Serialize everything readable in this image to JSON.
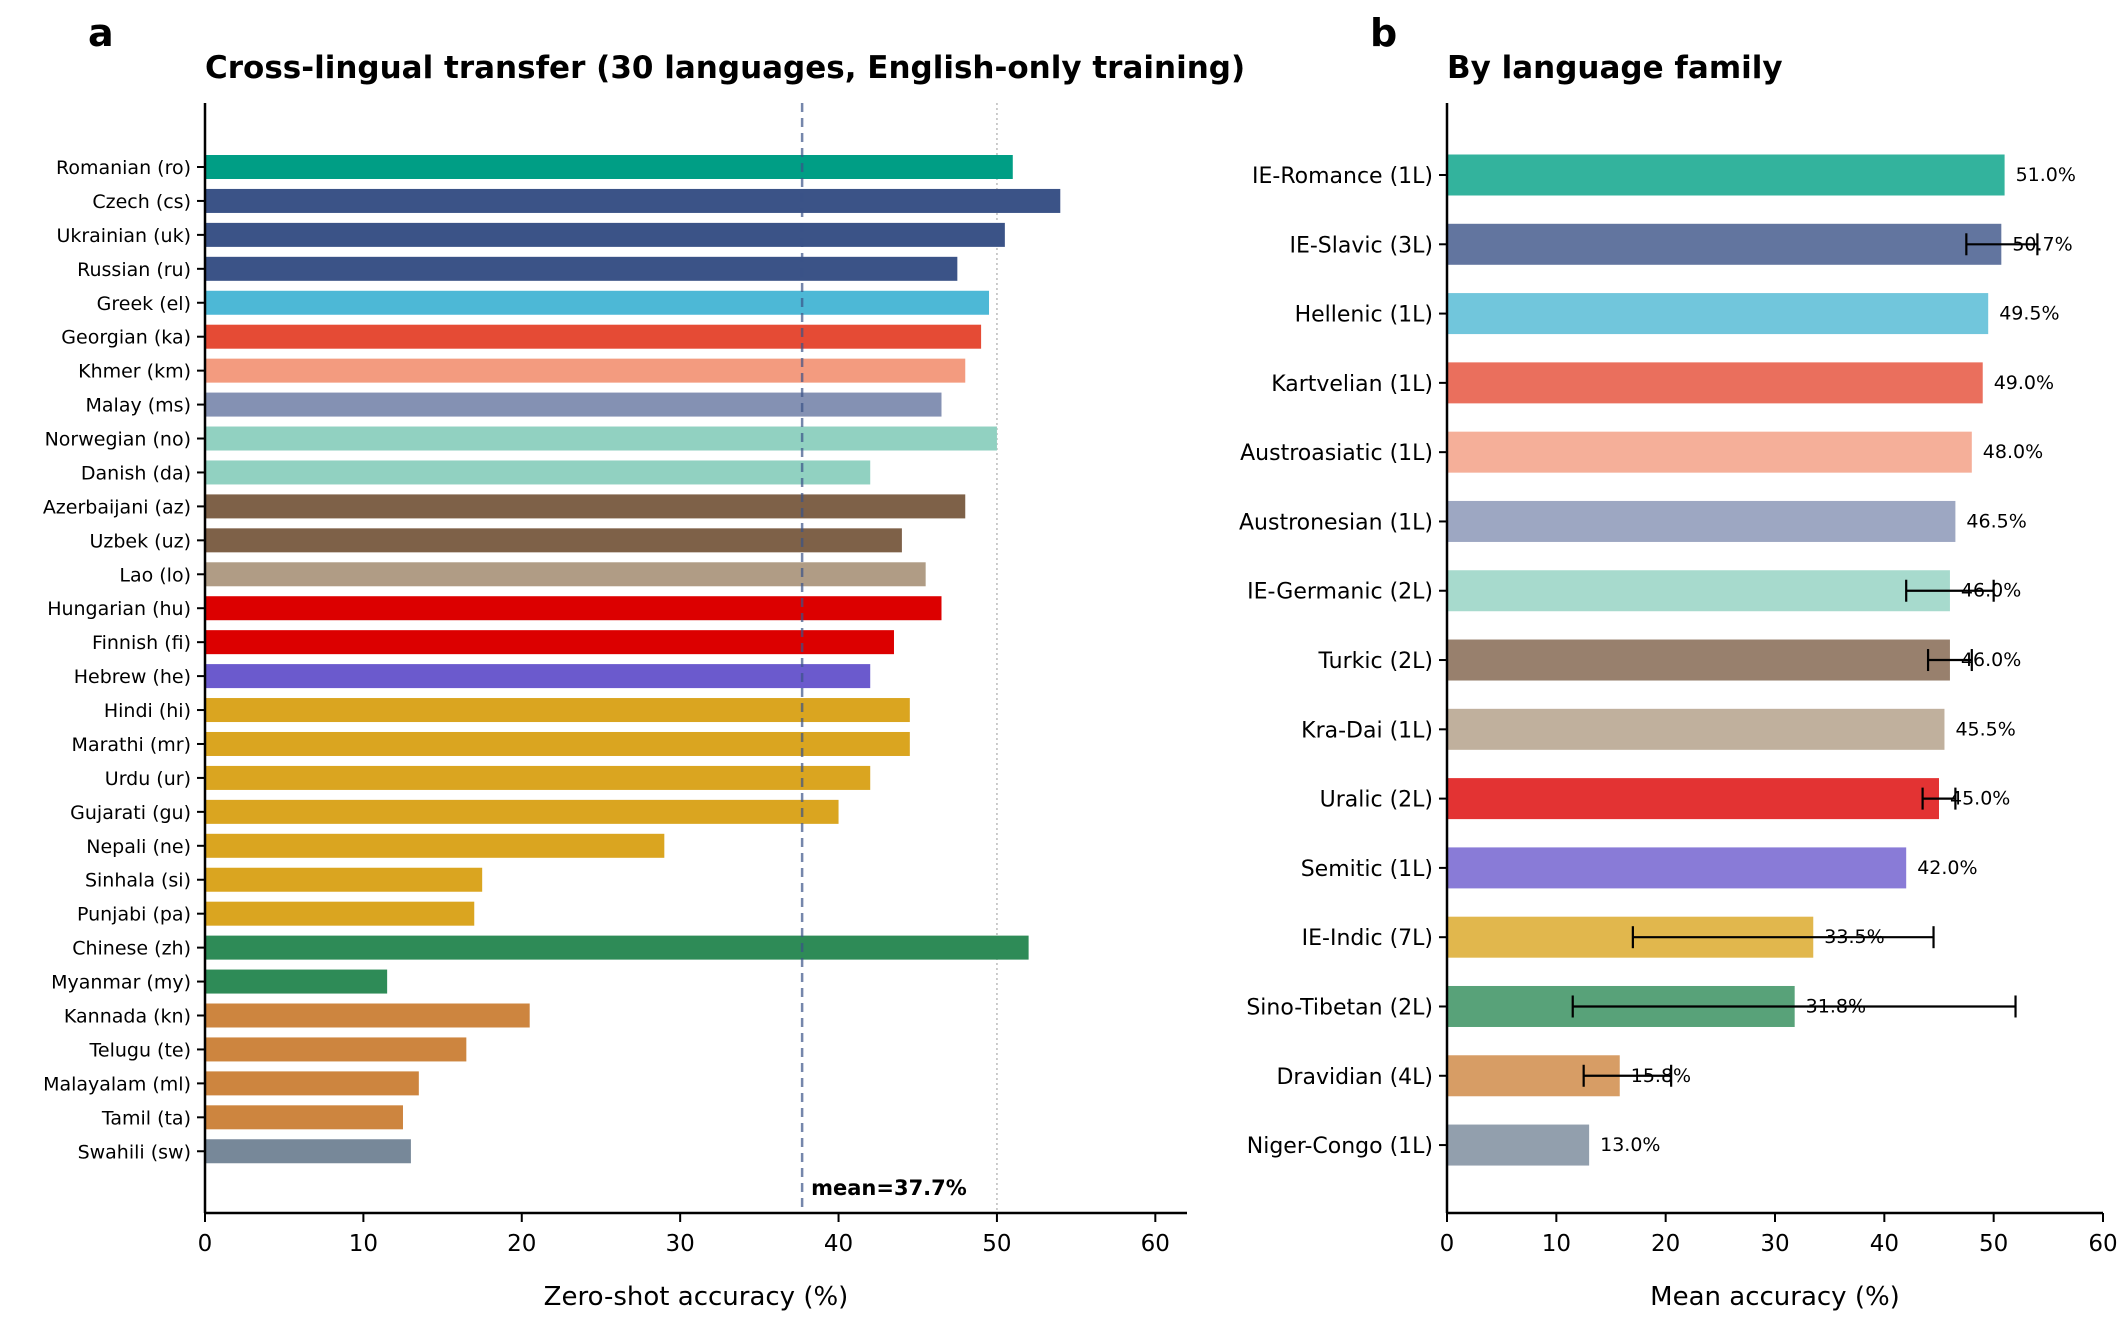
{
  "panel_a": {
    "letter": "a"
  },
  "panel_b": {
    "letter": "b"
  },
  "chart_data": [
    {
      "type": "bar",
      "orientation": "horizontal",
      "title": "Cross-lingual transfer (30 languages, English-only training)",
      "xlabel": "Zero-shot accuracy (%)",
      "ylabel": "",
      "xlim": [
        0,
        62
      ],
      "xticks": [
        0,
        10,
        20,
        30,
        40,
        50,
        60
      ],
      "reference_line_x": 50,
      "mean": {
        "value": 37.7,
        "label": "mean=37.7%",
        "color": "#3b5387"
      },
      "categories": [
        "Romanian (ro)",
        "Czech (cs)",
        "Ukrainian (uk)",
        "Russian (ru)",
        "Greek (el)",
        "Georgian (ka)",
        "Khmer (km)",
        "Malay (ms)",
        "Norwegian (no)",
        "Danish (da)",
        "Azerbaijani (az)",
        "Uzbek (uz)",
        "Lao (lo)",
        "Hungarian (hu)",
        "Finnish (fi)",
        "Hebrew (he)",
        "Hindi (hi)",
        "Marathi (mr)",
        "Urdu (ur)",
        "Gujarati (gu)",
        "Nepali (ne)",
        "Sinhala (si)",
        "Punjabi (pa)",
        "Chinese (zh)",
        "Myanmar (my)",
        "Kannada (kn)",
        "Telugu (te)",
        "Malayalam (ml)",
        "Tamil (ta)",
        "Swahili (sw)"
      ],
      "values": [
        51.0,
        54.0,
        50.5,
        47.5,
        49.5,
        49.0,
        48.0,
        46.5,
        50.0,
        42.0,
        48.0,
        44.0,
        45.5,
        46.5,
        43.5,
        42.0,
        44.5,
        44.5,
        42.0,
        40.0,
        29.0,
        17.5,
        17.0,
        52.0,
        11.5,
        20.5,
        16.5,
        13.5,
        12.5,
        13.0
      ],
      "colors": [
        "#009e85",
        "#3b5387",
        "#3b5387",
        "#3b5387",
        "#4db8d6",
        "#e54b35",
        "#f39b7f",
        "#8491b3",
        "#91d1c1",
        "#91d1c1",
        "#7e6148",
        "#7e6148",
        "#b09c85",
        "#dc0000",
        "#dc0000",
        "#6b5acd",
        "#daa520",
        "#daa520",
        "#daa520",
        "#daa520",
        "#daa520",
        "#daa520",
        "#daa520",
        "#2e8b57",
        "#2e8b57",
        "#cd853f",
        "#cd853f",
        "#cd853f",
        "#cd853f",
        "#778899"
      ]
    },
    {
      "type": "bar",
      "orientation": "horizontal",
      "title": "By language family",
      "xlabel": "Mean accuracy (%)",
      "ylabel": "",
      "xlim": [
        0,
        60
      ],
      "xticks": [
        0,
        10,
        20,
        30,
        40,
        50,
        60
      ],
      "categories": [
        "IE-Romance (1L)",
        "IE-Slavic (3L)",
        "Hellenic (1L)",
        "Kartvelian (1L)",
        "Austroasiatic (1L)",
        "Austronesian (1L)",
        "IE-Germanic (2L)",
        "Turkic (2L)",
        "Kra-Dai (1L)",
        "Uralic (2L)",
        "Semitic (1L)",
        "IE-Indic (7L)",
        "Sino-Tibetan (2L)",
        "Dravidian (4L)",
        "Niger-Congo (1L)"
      ],
      "values": [
        51.0,
        50.7,
        49.5,
        49.0,
        48.0,
        46.5,
        46.0,
        46.0,
        45.5,
        45.0,
        42.0,
        33.5,
        31.8,
        15.8,
        13.0
      ],
      "value_labels": [
        "51.0%",
        "50.7%",
        "49.5%",
        "49.0%",
        "48.0%",
        "46.5%",
        "46.0%",
        "46.0%",
        "45.5%",
        "45.0%",
        "42.0%",
        "33.5%",
        "31.8%",
        "15.8%",
        "13.0%"
      ],
      "error": [
        null,
        [
          47.5,
          54.0
        ],
        null,
        null,
        null,
        null,
        [
          42.0,
          50.0
        ],
        [
          44.0,
          48.0
        ],
        null,
        [
          43.5,
          46.5
        ],
        null,
        [
          17.0,
          44.5
        ],
        [
          11.5,
          52.0
        ],
        [
          12.5,
          20.5
        ],
        null
      ],
      "colors": [
        "#33b39d",
        "#62759f",
        "#71c6dc",
        "#ea6f5d",
        "#f5af99",
        "#9da7c2",
        "#a7dacd",
        "#98806d",
        "#c0b09d",
        "#e33333",
        "#897bd7",
        "#e1b74d",
        "#58a279",
        "#d79d65",
        "#929fad"
      ]
    }
  ]
}
